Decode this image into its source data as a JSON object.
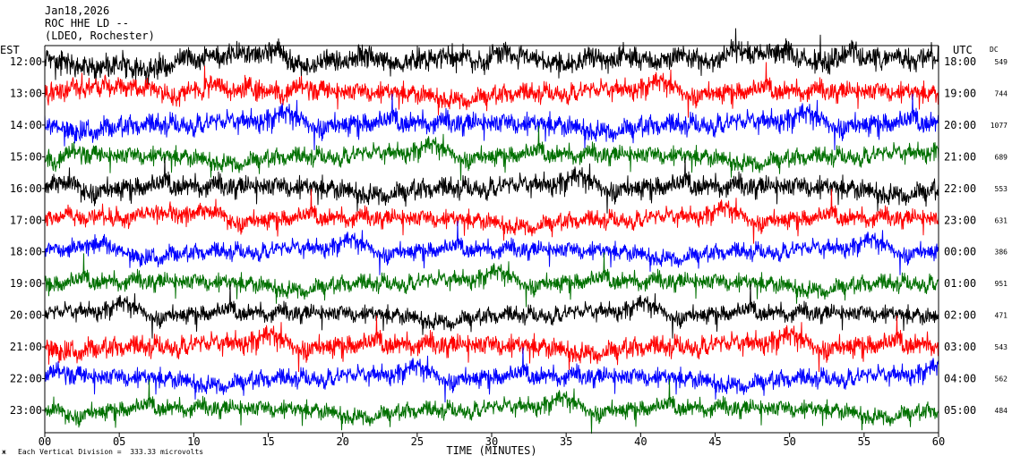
{
  "header": {
    "date": "Jan18,2026",
    "station": "ROC HHE LD --",
    "network": "(LDEO, Rochester)"
  },
  "footer": {
    "scale_note": "Each Vertical Division =  333.33 microvolts"
  },
  "chart_data": {
    "type": "line",
    "title": "",
    "xlabel": "TIME (MINUTES)",
    "left_axis_label": "EST",
    "right_axis_label": "UTC",
    "dc_label": "DC",
    "xlim": [
      0,
      60
    ],
    "x_ticks": [
      "00",
      "05",
      "10",
      "15",
      "20",
      "25",
      "30",
      "35",
      "40",
      "45",
      "50",
      "55",
      "60"
    ],
    "trace_colors": [
      "#000000",
      "#ff0000",
      "#0000ff",
      "#007000"
    ],
    "rows": [
      {
        "est": "12:00",
        "utc": "18:00",
        "dc": "549"
      },
      {
        "est": "13:00",
        "utc": "19:00",
        "dc": "744"
      },
      {
        "est": "14:00",
        "utc": "20:00",
        "dc": "1077"
      },
      {
        "est": "15:00",
        "utc": "21:00",
        "dc": "689"
      },
      {
        "est": "16:00",
        "utc": "22:00",
        "dc": "553"
      },
      {
        "est": "17:00",
        "utc": "23:00",
        "dc": "631"
      },
      {
        "est": "18:00",
        "utc": "00:00",
        "dc": "386"
      },
      {
        "est": "19:00",
        "utc": "01:00",
        "dc": "951"
      },
      {
        "est": "20:00",
        "utc": "02:00",
        "dc": "471"
      },
      {
        "est": "21:00",
        "utc": "03:00",
        "dc": "543"
      },
      {
        "est": "22:00",
        "utc": "04:00",
        "dc": "562"
      },
      {
        "est": "23:00",
        "utc": "05:00",
        "dc": "484"
      }
    ]
  }
}
